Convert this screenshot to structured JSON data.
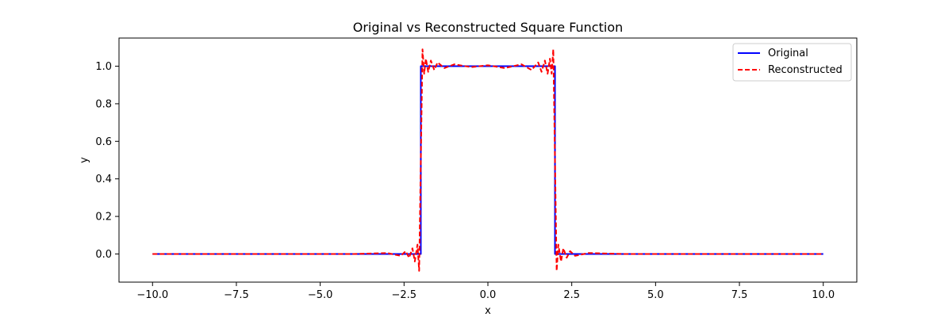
{
  "chart_data": {
    "type": "line",
    "title": "Original vs Reconstructed Square Function",
    "xlabel": "x",
    "ylabel": "y",
    "xlim": [
      -11.0,
      11.0
    ],
    "ylim": [
      -0.15,
      1.15
    ],
    "xticks": [
      -10.0,
      -7.5,
      -5.0,
      -2.5,
      0.0,
      2.5,
      5.0,
      7.5,
      10.0
    ],
    "xtick_labels": [
      "−10.0",
      "−7.5",
      "−5.0",
      "−2.5",
      "0.0",
      "2.5",
      "5.0",
      "7.5",
      "10.0"
    ],
    "yticks": [
      0.0,
      0.2,
      0.4,
      0.6,
      0.8,
      1.0
    ],
    "ytick_labels": [
      "0.0",
      "0.2",
      "0.4",
      "0.6",
      "0.8",
      "1.0"
    ],
    "grid": false,
    "legend_position": "top-right",
    "series": [
      {
        "name": "Original",
        "color": "#0000ff",
        "style": "solid",
        "x": [
          -10,
          -2.0,
          -2.0,
          2.0,
          2.0,
          10
        ],
        "y": [
          0,
          0,
          1,
          1,
          0,
          0
        ]
      },
      {
        "name": "Reconstructed",
        "color": "#ff0000",
        "style": "dashed",
        "x": [
          -10,
          -4.0,
          -3.0,
          -2.6,
          -2.45,
          -2.35,
          -2.25,
          -2.18,
          -2.1,
          -2.05,
          -2.0,
          -1.95,
          -1.9,
          -1.85,
          -1.78,
          -1.7,
          -1.6,
          -1.5,
          -1.3,
          -1.0,
          -0.5,
          0.0,
          0.5,
          1.0,
          1.3,
          1.5,
          1.6,
          1.7,
          1.78,
          1.85,
          1.9,
          1.95,
          2.0,
          2.05,
          2.1,
          2.18,
          2.25,
          2.35,
          2.45,
          2.6,
          3.0,
          4.0,
          10
        ],
        "y": [
          0,
          0,
          0.005,
          -0.01,
          0.015,
          -0.02,
          0.03,
          -0.04,
          0.05,
          -0.09,
          0.5,
          1.09,
          0.96,
          1.04,
          0.97,
          1.03,
          0.98,
          1.02,
          0.99,
          1.01,
          0.995,
          1.005,
          0.99,
          1.01,
          0.98,
          1.02,
          0.97,
          1.03,
          0.96,
          1.04,
          0.96,
          1.09,
          0.5,
          -0.09,
          0.05,
          -0.04,
          0.03,
          -0.02,
          0.015,
          -0.01,
          0.005,
          0,
          0
        ]
      }
    ]
  }
}
